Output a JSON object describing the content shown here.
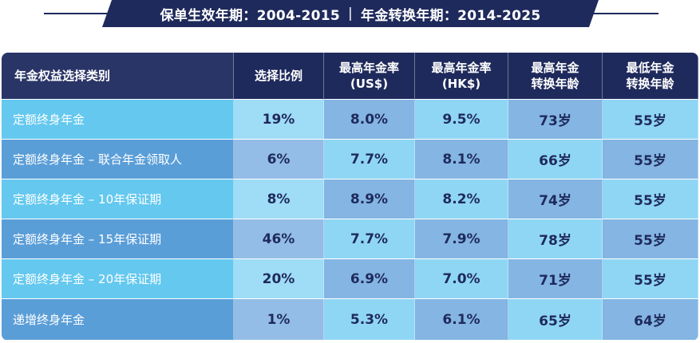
{
  "banner": {
    "left": "保单生效年期：2004-2015",
    "separator": "|",
    "right": "年金转换年期：2014-2025"
  },
  "table": {
    "headers": {
      "category": "年金权益选择类别",
      "ratio": "选择比例",
      "max_usd_line1": "最高年金率",
      "max_usd_line2": "(US$)",
      "max_hkd_line1": "最高年金率",
      "max_hkd_line2": "(HK$)",
      "max_age_line1": "最高年金",
      "max_age_line2": "转换年龄",
      "min_age_line1": "最低年金",
      "min_age_line2": "转换年龄"
    },
    "rows": [
      {
        "category": "定额终身年金",
        "ratio": "19%",
        "usd": "8.0%",
        "hkd": "9.5%",
        "max_age": "73岁",
        "min_age": "55岁"
      },
      {
        "category": "定额终身年金 – 联合年金领取人",
        "ratio": "6%",
        "usd": "7.7%",
        "hkd": "8.1%",
        "max_age": "66岁",
        "min_age": "55岁"
      },
      {
        "category": "定额终身年金 – 10年保证期",
        "ratio": "8%",
        "usd": "8.9%",
        "hkd": "8.2%",
        "max_age": "74岁",
        "min_age": "55岁"
      },
      {
        "category": "定额终身年金 – 15年保证期",
        "ratio": "46%",
        "usd": "7.7%",
        "hkd": "7.9%",
        "max_age": "78岁",
        "min_age": "55岁"
      },
      {
        "category": "定额终身年金 – 20年保证期",
        "ratio": "20%",
        "usd": "6.9%",
        "hkd": "7.0%",
        "max_age": "71岁",
        "min_age": "55岁"
      },
      {
        "category": "递增终身年金",
        "ratio": "1%",
        "usd": "5.3%",
        "hkd": "6.1%",
        "max_age": "65岁",
        "min_age": "64岁"
      }
    ]
  }
}
